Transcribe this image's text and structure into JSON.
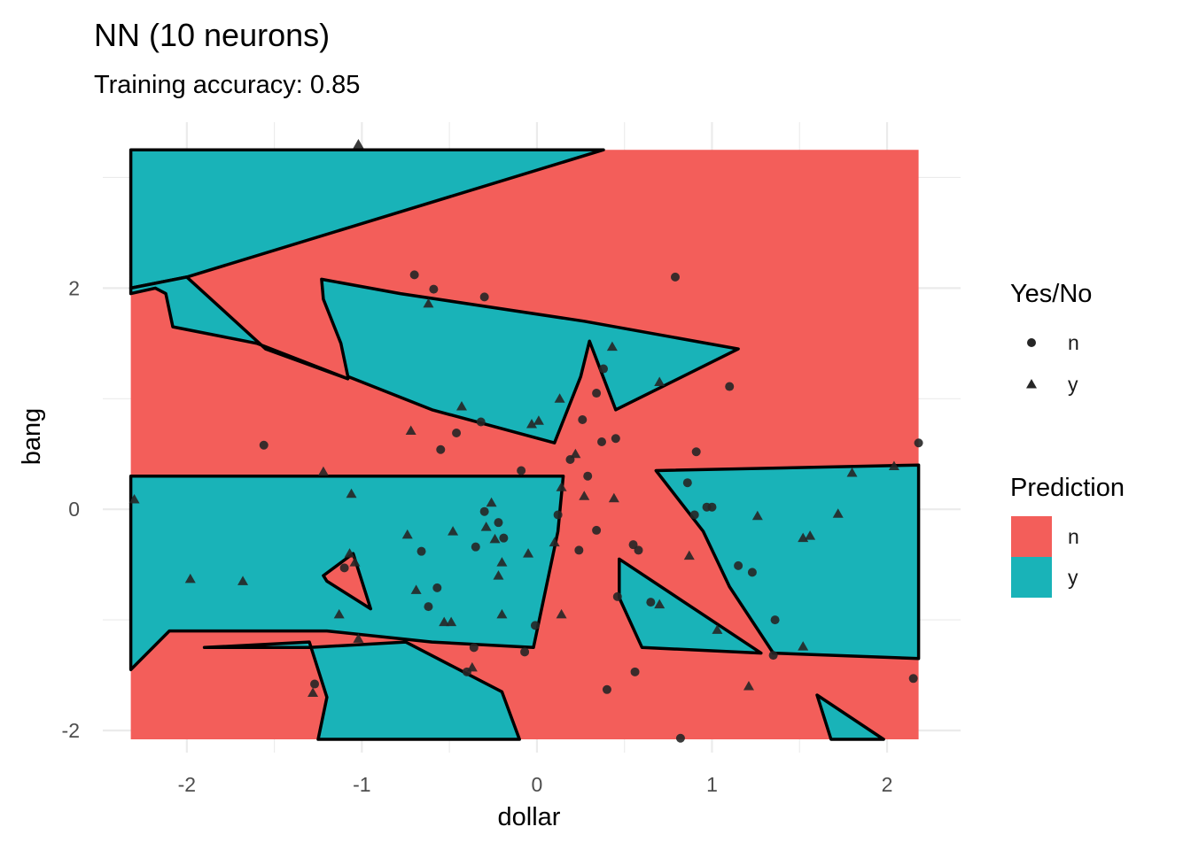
{
  "chart_data": {
    "type": "scatter",
    "title": "NN (10 neurons)",
    "subtitle": "Training accuracy: 0.85",
    "xlabel": "dollar",
    "ylabel": "bang",
    "xlim": [
      -2.48,
      2.42
    ],
    "ylim": [
      -2.2,
      3.5
    ],
    "x_ticks": [
      -2,
      -1,
      0,
      1,
      2
    ],
    "x_tick_labels": [
      "-2",
      "-1",
      "0",
      "1",
      "2"
    ],
    "y_ticks": [
      -2,
      0,
      2
    ],
    "y_tick_labels": [
      "-2",
      "0",
      "2"
    ],
    "grid": true,
    "legend_position": "right",
    "background_region": {
      "xrange": [
        -2.32,
        2.18
      ],
      "yrange": [
        -2.08,
        3.25
      ],
      "fill_class": "n"
    },
    "prediction_regions": [
      {
        "class": "y",
        "polygon": [
          [
            -2.32,
            3.25
          ],
          [
            0.38,
            3.25
          ],
          [
            -2.0,
            2.1
          ],
          [
            -2.32,
            2.0
          ]
        ]
      },
      {
        "class": "y",
        "polygon": [
          [
            -2.32,
            1.95
          ],
          [
            -2.18,
            2.0
          ],
          [
            -2.12,
            1.95
          ],
          [
            -2.08,
            1.65
          ],
          [
            -1.6,
            1.5
          ],
          [
            -1.08,
            1.18
          ],
          [
            -1.55,
            1.45
          ],
          [
            -2.0,
            2.1
          ],
          [
            -2.32,
            2.0
          ]
        ]
      },
      {
        "class": "y",
        "polygon": [
          [
            -1.23,
            2.08
          ],
          [
            -0.78,
            1.95
          ],
          [
            0.27,
            1.7
          ],
          [
            1.15,
            1.45
          ],
          [
            0.45,
            0.9
          ],
          [
            0.3,
            1.52
          ],
          [
            0.25,
            1.2
          ],
          [
            0.1,
            0.6
          ],
          [
            -0.6,
            0.9
          ],
          [
            -1.08,
            1.2
          ],
          [
            -1.12,
            1.5
          ],
          [
            -1.22,
            1.9
          ]
        ]
      },
      {
        "class": "y",
        "polygon": [
          [
            -2.32,
            0.3
          ],
          [
            0.15,
            0.3
          ],
          [
            0.12,
            -0.2
          ],
          [
            -0.02,
            -1.25
          ],
          [
            -0.6,
            -1.2
          ],
          [
            -1.2,
            -1.1
          ],
          [
            -2.1,
            -1.1
          ],
          [
            -2.32,
            -1.45
          ]
        ]
      },
      {
        "class": "y",
        "polygon": [
          [
            -1.9,
            -1.25
          ],
          [
            -1.3,
            -1.2
          ],
          [
            -1.2,
            -1.7
          ],
          [
            -1.25,
            -2.08
          ],
          [
            -0.1,
            -2.08
          ],
          [
            -0.2,
            -1.65
          ],
          [
            -0.75,
            -1.2
          ],
          [
            -1.3,
            -1.25
          ]
        ]
      },
      {
        "class": "y",
        "polygon": [
          [
            0.68,
            0.35
          ],
          [
            2.18,
            0.4
          ],
          [
            2.18,
            -1.35
          ],
          [
            1.35,
            -1.3
          ],
          [
            1.1,
            -0.7
          ],
          [
            0.95,
            -0.2
          ],
          [
            0.68,
            0.35
          ]
        ]
      },
      {
        "class": "y",
        "polygon": [
          [
            0.47,
            -0.45
          ],
          [
            1.28,
            -1.3
          ],
          [
            0.6,
            -1.25
          ],
          [
            0.47,
            -0.8
          ]
        ]
      },
      {
        "class": "y",
        "polygon": [
          [
            1.6,
            -1.68
          ],
          [
            1.98,
            -2.08
          ],
          [
            1.68,
            -2.08
          ]
        ]
      },
      {
        "class": "n",
        "polygon": [
          [
            -1.22,
            -0.6
          ],
          [
            -1.05,
            -0.4
          ],
          [
            -0.95,
            -0.9
          ],
          [
            -1.2,
            -0.65
          ]
        ]
      }
    ],
    "series": [
      {
        "name": "n",
        "marker": "circle",
        "points": [
          [
            -0.7,
            2.12
          ],
          [
            -0.59,
            1.99
          ],
          [
            -0.3,
            1.92
          ],
          [
            0.79,
            2.1
          ],
          [
            -1.56,
            0.58
          ],
          [
            -0.55,
            0.54
          ],
          [
            -0.46,
            0.69
          ],
          [
            -0.32,
            0.79
          ],
          [
            0.26,
            0.81
          ],
          [
            0.37,
            0.61
          ],
          [
            0.45,
            0.64
          ],
          [
            0.19,
            0.45
          ],
          [
            0.29,
            0.3
          ],
          [
            0.34,
            1.05
          ],
          [
            0.38,
            1.27
          ],
          [
            0.91,
            0.52
          ],
          [
            1.1,
            1.11
          ],
          [
            0.86,
            0.24
          ],
          [
            0.97,
            0.02
          ],
          [
            0.9,
            -0.05
          ],
          [
            1.0,
            0.02
          ],
          [
            -0.09,
            0.35
          ],
          [
            0.12,
            -0.05
          ],
          [
            0.34,
            -0.19
          ],
          [
            0.24,
            -0.37
          ],
          [
            0.55,
            -0.32
          ],
          [
            0.58,
            -0.37
          ],
          [
            0.46,
            -0.79
          ],
          [
            0.65,
            -0.84
          ],
          [
            -0.66,
            -0.38
          ],
          [
            -0.62,
            -0.88
          ],
          [
            -0.57,
            -0.71
          ],
          [
            -0.35,
            -0.34
          ],
          [
            -0.22,
            -0.12
          ],
          [
            -0.19,
            -0.26
          ],
          [
            -0.3,
            -0.02
          ],
          [
            -1.1,
            -0.53
          ],
          [
            -0.36,
            -1.25
          ],
          [
            -0.4,
            -1.47
          ],
          [
            -0.07,
            -1.29
          ],
          [
            -0.01,
            -1.05
          ],
          [
            1.15,
            -0.51
          ],
          [
            1.23,
            -0.57
          ],
          [
            1.36,
            -1.0
          ],
          [
            1.35,
            -1.32
          ],
          [
            0.56,
            -1.47
          ],
          [
            0.4,
            -1.63
          ],
          [
            -1.27,
            -1.58
          ],
          [
            0.82,
            -2.07
          ],
          [
            2.18,
            0.6
          ],
          [
            2.15,
            -1.53
          ]
        ]
      },
      {
        "name": "y",
        "marker": "triangle",
        "points": [
          [
            -1.02,
            3.3
          ],
          [
            -0.62,
            1.86
          ],
          [
            0.43,
            1.47
          ],
          [
            0.7,
            1.15
          ],
          [
            0.13,
            1.0
          ],
          [
            -0.43,
            0.93
          ],
          [
            -0.03,
            0.77
          ],
          [
            0.01,
            0.8
          ],
          [
            -0.72,
            0.71
          ],
          [
            -1.22,
            0.34
          ],
          [
            -2.3,
            0.09
          ],
          [
            -1.06,
            0.14
          ],
          [
            -0.26,
            0.06
          ],
          [
            -0.29,
            -0.16
          ],
          [
            -0.24,
            -0.27
          ],
          [
            -0.74,
            -0.23
          ],
          [
            -0.48,
            -0.2
          ],
          [
            -0.2,
            -0.48
          ],
          [
            -0.05,
            -0.4
          ],
          [
            -0.22,
            -0.6
          ],
          [
            -1.07,
            -0.4
          ],
          [
            -1.04,
            -0.48
          ],
          [
            -1.98,
            -0.63
          ],
          [
            -1.68,
            -0.65
          ],
          [
            -0.69,
            -0.73
          ],
          [
            -0.49,
            -1.02
          ],
          [
            -0.2,
            -0.95
          ],
          [
            -1.13,
            -0.95
          ],
          [
            -1.02,
            -1.17
          ],
          [
            -0.53,
            -1.02
          ],
          [
            0.14,
            -0.95
          ],
          [
            0.1,
            -0.3
          ],
          [
            0.14,
            0.2
          ],
          [
            0.22,
            0.5
          ],
          [
            0.27,
            0.12
          ],
          [
            0.44,
            0.1
          ],
          [
            0.7,
            -0.86
          ],
          [
            1.03,
            -1.09
          ],
          [
            0.87,
            -0.42
          ],
          [
            1.21,
            -1.6
          ],
          [
            1.26,
            -0.06
          ],
          [
            1.52,
            -0.26
          ],
          [
            1.56,
            -0.24
          ],
          [
            1.72,
            -0.04
          ],
          [
            1.8,
            0.33
          ],
          [
            2.04,
            0.39
          ],
          [
            1.52,
            -1.24
          ],
          [
            -1.28,
            -1.66
          ],
          [
            -0.37,
            -1.43
          ]
        ]
      }
    ],
    "legends": [
      {
        "title": "Yes/No",
        "items": [
          {
            "label": "n",
            "marker": "circle"
          },
          {
            "label": "y",
            "marker": "triangle"
          }
        ]
      },
      {
        "title": "Prediction",
        "items": [
          {
            "label": "n",
            "color": "#f35e5a"
          },
          {
            "label": "y",
            "color": "#19b3b8"
          }
        ]
      }
    ],
    "colors": {
      "n": "#f35e5a",
      "y": "#19b3b8",
      "points": "#262626",
      "grid": "#ebebeb",
      "boundary": "#000000"
    }
  }
}
